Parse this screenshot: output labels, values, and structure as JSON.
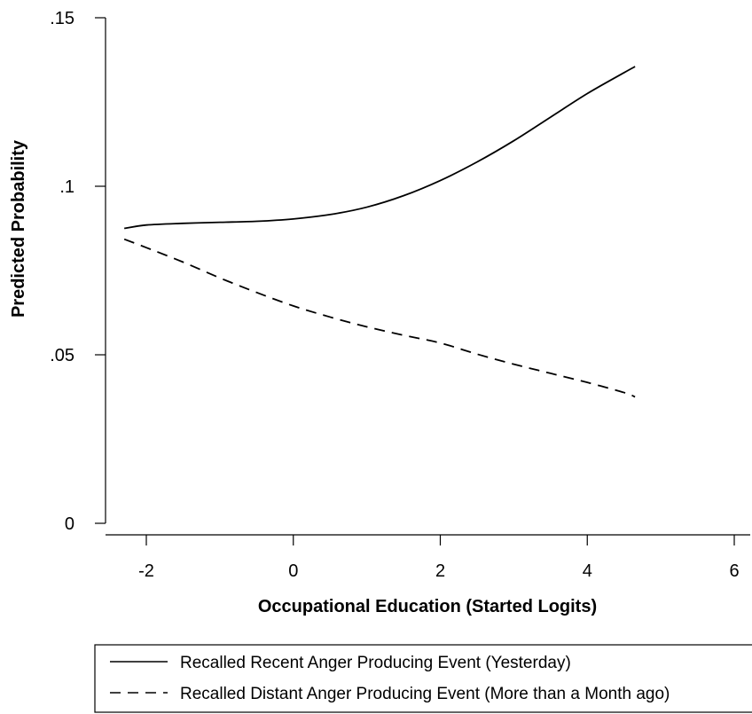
{
  "chart_data": {
    "type": "line",
    "title": "",
    "xlabel": "Occupational Education (Started Logits)",
    "ylabel": "Predicted Probability",
    "xlim": [
      -2.5,
      6
    ],
    "ylim": [
      0,
      0.15
    ],
    "x_ticks": [
      {
        "value": -2,
        "label": "-2"
      },
      {
        "value": 0,
        "label": "0"
      },
      {
        "value": 2,
        "label": "2"
      },
      {
        "value": 4,
        "label": "4"
      },
      {
        "value": 6,
        "label": "6"
      }
    ],
    "y_ticks": [
      {
        "value": 0,
        "label": "0"
      },
      {
        "value": 0.05,
        "label": ".05"
      },
      {
        "value": 0.1,
        "label": ".1"
      },
      {
        "value": 0.15,
        "label": ".15"
      }
    ],
    "grid": false,
    "legend_position": "bottom",
    "series": [
      {
        "name": "Recalled Recent Anger Producing Event (Yesterday)",
        "style": "solid",
        "color": "#000000",
        "x": [
          -2.3,
          -2.0,
          -1.5,
          -1.0,
          -0.5,
          0.0,
          0.5,
          1.0,
          1.5,
          2.0,
          2.5,
          3.0,
          3.5,
          4.0,
          4.5,
          4.65
        ],
        "y": [
          0.0875,
          0.0885,
          0.089,
          0.0893,
          0.0896,
          0.0903,
          0.0916,
          0.0938,
          0.0972,
          0.1017,
          0.1072,
          0.1135,
          0.1205,
          0.1275,
          0.1337,
          0.1355
        ]
      },
      {
        "name": "Recalled Distant Anger Producing Event (More than a Month ago)",
        "style": "dashed",
        "color": "#000000",
        "x": [
          -2.3,
          -2.0,
          -1.5,
          -1.0,
          -0.5,
          0.0,
          0.5,
          1.0,
          1.5,
          2.0,
          2.5,
          3.0,
          3.5,
          4.0,
          4.5,
          4.65
        ],
        "y": [
          0.0843,
          0.0818,
          0.0775,
          0.0728,
          0.0685,
          0.0645,
          0.0612,
          0.0583,
          0.0558,
          0.0535,
          0.0502,
          0.0472,
          0.0445,
          0.0418,
          0.0388,
          0.0375
        ]
      }
    ]
  }
}
